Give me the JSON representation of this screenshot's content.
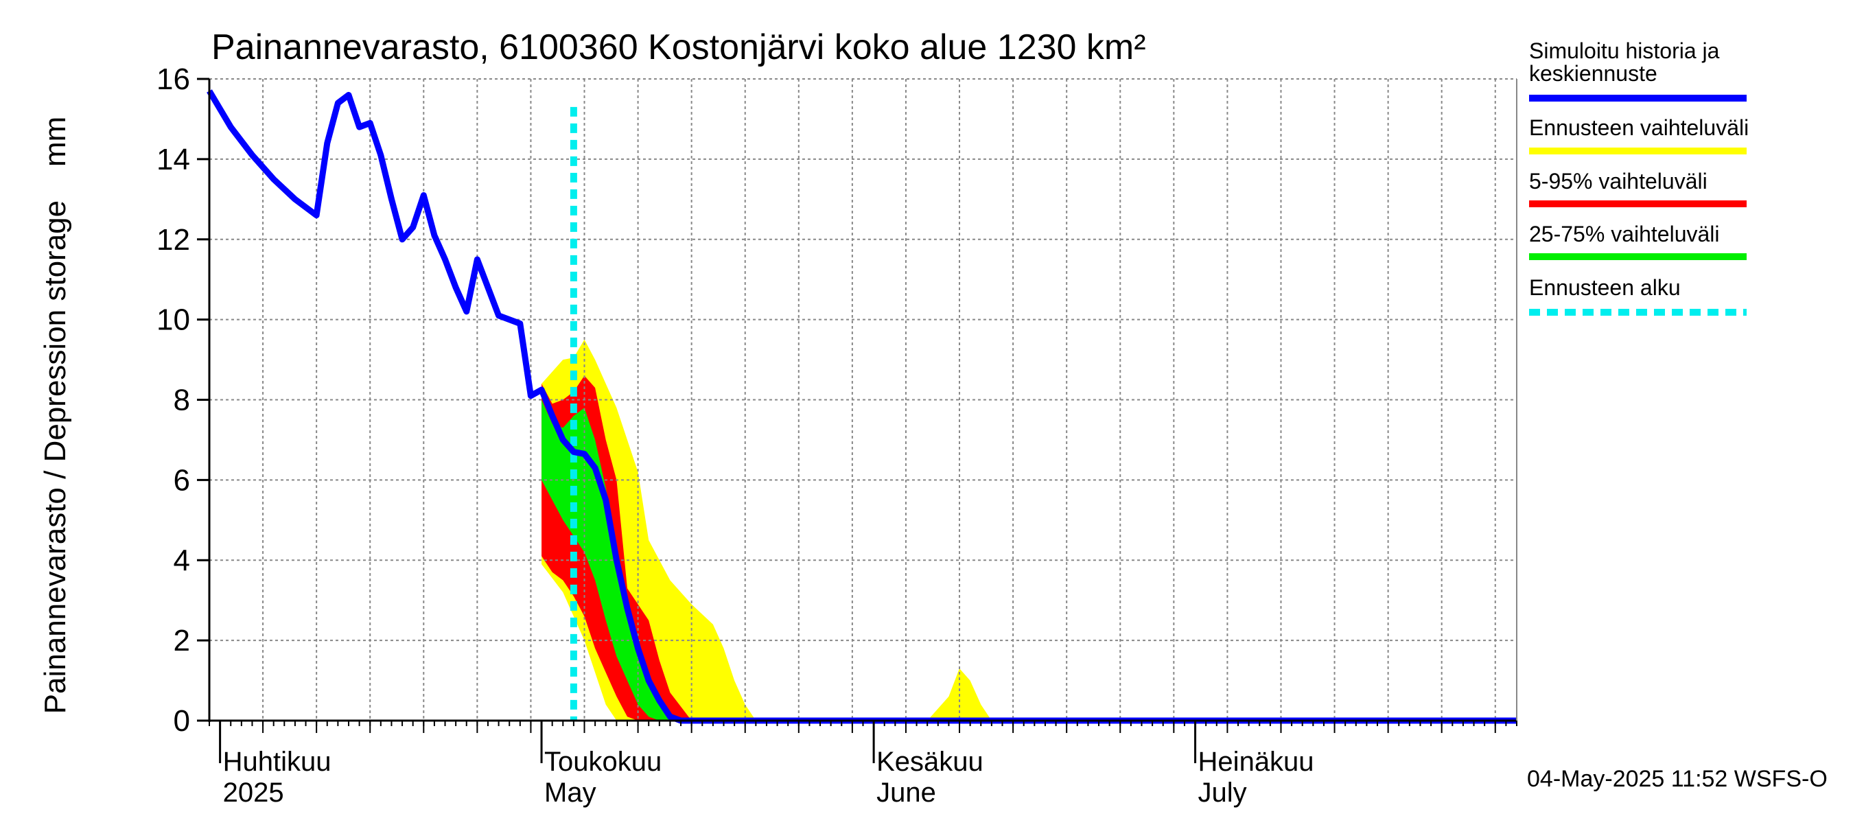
{
  "chart_data": {
    "type": "area",
    "title": "Painannevarasto, 6100360 Kostonjärvi koko alue 1230 km²",
    "ylabel": "Painannevarasto / Depression storage    mm",
    "ylim": [
      0,
      16
    ],
    "yticks": [
      0,
      2,
      4,
      6,
      8,
      10,
      12,
      14,
      16
    ],
    "xlim": [
      "2025-03-31",
      "2025-07-31"
    ],
    "grid": true,
    "legend_position": "right",
    "month_labels": [
      {
        "date": "2025-04-01",
        "line1": "Huhtikuu",
        "line2": "2025"
      },
      {
        "date": "2025-05-01",
        "line1": "Toukokuu",
        "line2": "May"
      },
      {
        "date": "2025-06-01",
        "line1": "Kesäkuu",
        "line2": "June"
      },
      {
        "date": "2025-07-01",
        "line1": "Heinäkuu",
        "line2": "July"
      }
    ],
    "forecast_start": "2025-05-04",
    "footer_text": "04-May-2025 11:52 WSFS-O",
    "legend": [
      {
        "label": "Simuloitu historia ja keskiennuste",
        "color": "#0000ff",
        "style": "solid"
      },
      {
        "label": "Ennusteen vaihteluväli",
        "color": "#ffff00",
        "style": "solid"
      },
      {
        "label": "5-95% vaihteluväli",
        "color": "#ff0000",
        "style": "solid"
      },
      {
        "label": "25-75% vaihteluväli",
        "color": "#00ee00",
        "style": "solid"
      },
      {
        "label": "Ennusteen alku",
        "color": "#00eeee",
        "style": "dashed"
      }
    ],
    "series": {
      "history_and_median": {
        "color": "#0000ff",
        "points": [
          [
            "2025-03-31",
            15.7
          ],
          [
            "2025-04-02",
            14.8
          ],
          [
            "2025-04-04",
            14.1
          ],
          [
            "2025-04-06",
            13.5
          ],
          [
            "2025-04-08",
            13.0
          ],
          [
            "2025-04-10",
            12.6
          ],
          [
            "2025-04-11",
            14.4
          ],
          [
            "2025-04-12",
            15.4
          ],
          [
            "2025-04-13",
            15.6
          ],
          [
            "2025-04-14",
            14.8
          ],
          [
            "2025-04-15",
            14.9
          ],
          [
            "2025-04-16",
            14.1
          ],
          [
            "2025-04-17",
            13.0
          ],
          [
            "2025-04-18",
            12.0
          ],
          [
            "2025-04-19",
            12.3
          ],
          [
            "2025-04-20",
            13.1
          ],
          [
            "2025-04-21",
            12.1
          ],
          [
            "2025-04-22",
            11.5
          ],
          [
            "2025-04-23",
            10.8
          ],
          [
            "2025-04-24",
            10.2
          ],
          [
            "2025-04-25",
            11.5
          ],
          [
            "2025-04-26",
            10.8
          ],
          [
            "2025-04-27",
            10.1
          ],
          [
            "2025-04-29",
            9.9
          ],
          [
            "2025-04-30",
            8.1
          ],
          [
            "2025-05-01",
            8.25
          ],
          [
            "2025-05-02",
            7.6
          ],
          [
            "2025-05-03",
            7.0
          ],
          [
            "2025-05-04",
            6.7
          ],
          [
            "2025-05-05",
            6.65
          ],
          [
            "2025-05-06",
            6.3
          ],
          [
            "2025-05-07",
            5.5
          ],
          [
            "2025-05-08",
            4.0
          ],
          [
            "2025-05-09",
            2.8
          ],
          [
            "2025-05-10",
            1.8
          ],
          [
            "2025-05-11",
            1.0
          ],
          [
            "2025-05-12",
            0.5
          ],
          [
            "2025-05-13",
            0.1
          ],
          [
            "2025-05-14",
            0.0
          ],
          [
            "2025-07-31",
            0.0
          ]
        ]
      },
      "total_range": {
        "color": "#ffff00",
        "upper": [
          [
            "2025-05-01",
            8.4
          ],
          [
            "2025-05-03",
            9.0
          ],
          [
            "2025-05-04",
            9.05
          ],
          [
            "2025-05-05",
            9.5
          ],
          [
            "2025-05-06",
            9.0
          ],
          [
            "2025-05-07",
            8.4
          ],
          [
            "2025-05-08",
            7.8
          ],
          [
            "2025-05-10",
            6.2
          ],
          [
            "2025-05-11",
            4.5
          ],
          [
            "2025-05-13",
            3.5
          ],
          [
            "2025-05-15",
            2.9
          ],
          [
            "2025-05-17",
            2.4
          ],
          [
            "2025-05-18",
            1.8
          ],
          [
            "2025-05-19",
            1.0
          ],
          [
            "2025-05-20",
            0.4
          ],
          [
            "2025-05-21",
            0.0
          ],
          [
            "2025-06-06",
            0.0
          ],
          [
            "2025-06-08",
            0.6
          ],
          [
            "2025-06-09",
            1.3
          ],
          [
            "2025-06-10",
            1.0
          ],
          [
            "2025-06-11",
            0.4
          ],
          [
            "2025-06-12",
            0.0
          ],
          [
            "2025-07-31",
            0.0
          ]
        ],
        "lower": [
          [
            "2025-05-01",
            3.9
          ],
          [
            "2025-05-03",
            3.2
          ],
          [
            "2025-05-04",
            2.6
          ],
          [
            "2025-05-05",
            2.0
          ],
          [
            "2025-05-06",
            1.2
          ],
          [
            "2025-05-07",
            0.4
          ],
          [
            "2025-05-08",
            0.0
          ],
          [
            "2025-07-31",
            0.0
          ]
        ]
      },
      "p5_95": {
        "color": "#ff0000",
        "upper": [
          [
            "2025-05-01",
            8.4
          ],
          [
            "2025-05-02",
            7.9
          ],
          [
            "2025-05-03",
            8.0
          ],
          [
            "2025-05-04",
            8.2
          ],
          [
            "2025-05-05",
            8.6
          ],
          [
            "2025-05-06",
            8.3
          ],
          [
            "2025-05-07",
            7.0
          ],
          [
            "2025-05-08",
            6.0
          ],
          [
            "2025-05-09",
            3.3
          ],
          [
            "2025-05-11",
            2.5
          ],
          [
            "2025-05-12",
            1.5
          ],
          [
            "2025-05-13",
            0.7
          ],
          [
            "2025-05-15",
            0.0
          ],
          [
            "2025-07-31",
            0.0
          ]
        ],
        "lower": [
          [
            "2025-05-01",
            4.1
          ],
          [
            "2025-05-02",
            3.7
          ],
          [
            "2025-05-03",
            3.5
          ],
          [
            "2025-05-04",
            3.1
          ],
          [
            "2025-05-05",
            2.6
          ],
          [
            "2025-05-06",
            1.8
          ],
          [
            "2025-05-07",
            1.2
          ],
          [
            "2025-05-08",
            0.6
          ],
          [
            "2025-05-09",
            0.1
          ],
          [
            "2025-05-10",
            0.0
          ],
          [
            "2025-07-31",
            0.0
          ]
        ]
      },
      "p25_75": {
        "color": "#00ee00",
        "upper": [
          [
            "2025-05-01",
            8.0
          ],
          [
            "2025-05-02",
            7.4
          ],
          [
            "2025-05-03",
            7.3
          ],
          [
            "2025-05-04",
            7.6
          ],
          [
            "2025-05-05",
            7.8
          ],
          [
            "2025-05-06",
            7.0
          ],
          [
            "2025-05-07",
            5.8
          ],
          [
            "2025-05-08",
            4.3
          ],
          [
            "2025-05-09",
            2.8
          ],
          [
            "2025-05-10",
            1.9
          ],
          [
            "2025-05-11",
            1.1
          ],
          [
            "2025-05-12",
            0.4
          ],
          [
            "2025-05-13",
            0.05
          ],
          [
            "2025-05-14",
            0.0
          ],
          [
            "2025-07-31",
            0.0
          ]
        ],
        "lower": [
          [
            "2025-05-01",
            6.0
          ],
          [
            "2025-05-02",
            5.5
          ],
          [
            "2025-05-03",
            5.0
          ],
          [
            "2025-05-04",
            4.6
          ],
          [
            "2025-05-05",
            4.2
          ],
          [
            "2025-05-06",
            3.5
          ],
          [
            "2025-05-07",
            2.5
          ],
          [
            "2025-05-08",
            1.6
          ],
          [
            "2025-05-09",
            1.0
          ],
          [
            "2025-05-10",
            0.4
          ],
          [
            "2025-05-11",
            0.1
          ],
          [
            "2025-05-12",
            0.0
          ],
          [
            "2025-07-31",
            0.0
          ]
        ]
      }
    }
  }
}
